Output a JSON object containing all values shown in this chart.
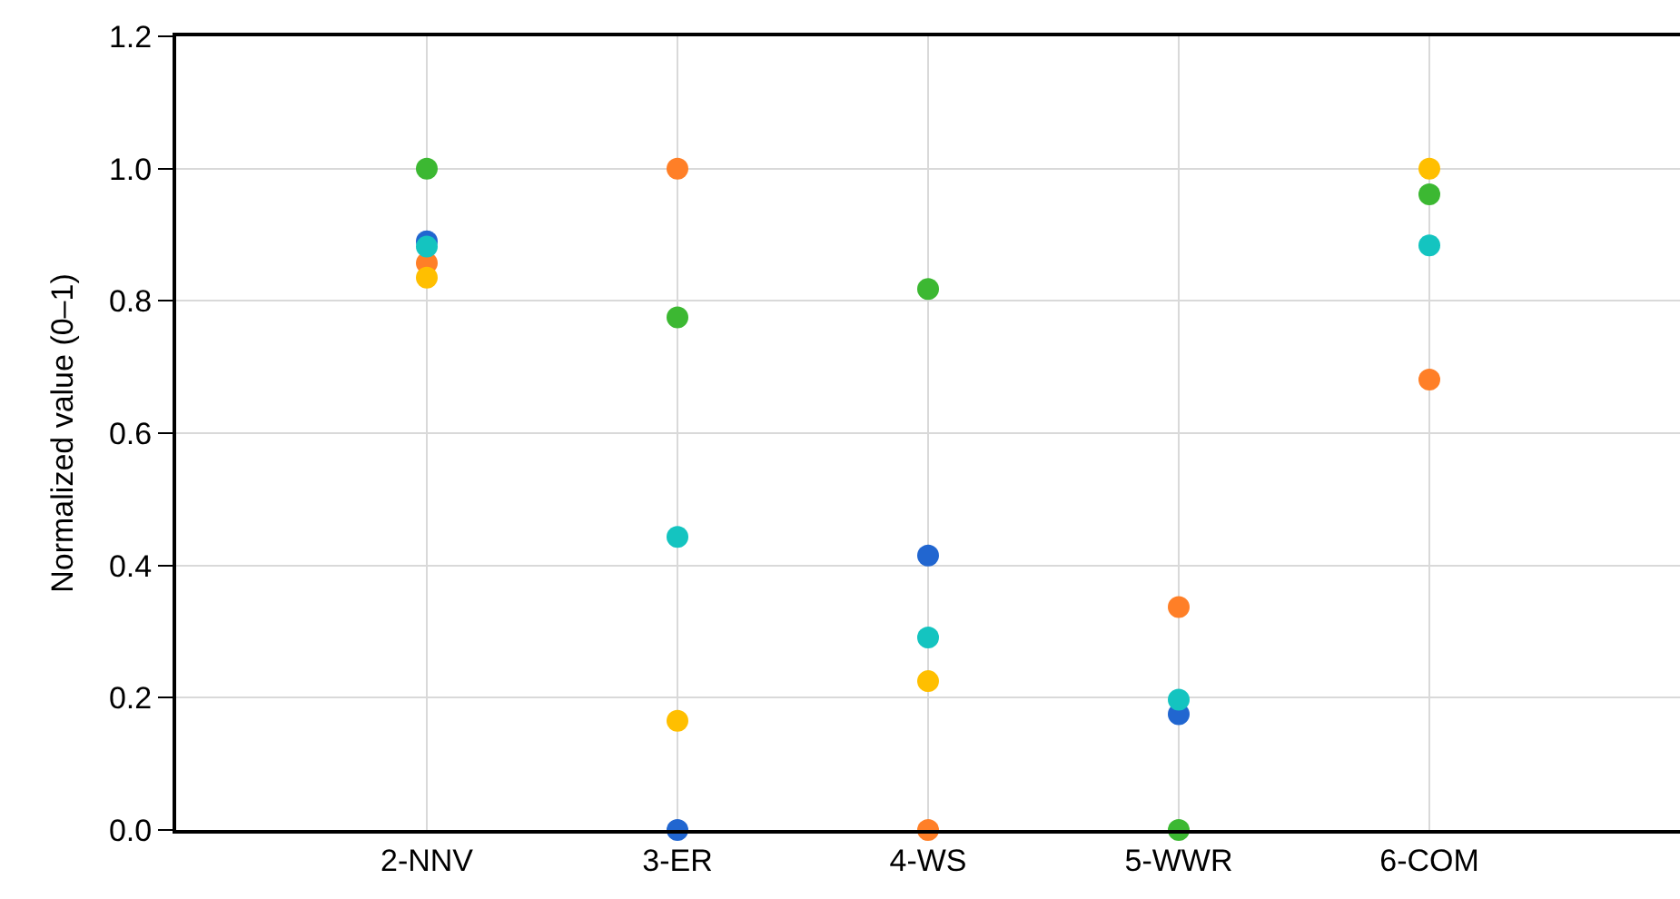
{
  "chart_data": {
    "type": "scatter",
    "ylabel": "Normalized value (0–1)",
    "categories": [
      "2-NNV",
      "3-ER",
      "4-WS",
      "5-WWR",
      "6-COM"
    ],
    "series": [
      {
        "color": "#2166d0",
        "values": [
          0.89,
          0,
          0.415,
          0.175,
          null
        ]
      },
      {
        "color": "#ff7f27",
        "values": [
          0.857,
          1.0,
          0,
          0.337,
          0.681
        ]
      },
      {
        "color": "#ffbf00",
        "values": [
          0.835,
          0.165,
          0.225,
          null,
          1.0
        ]
      },
      {
        "color": "#3cb832",
        "values": [
          1.0,
          0.775,
          0.818,
          0,
          0.961
        ]
      },
      {
        "color": "#14c4c0",
        "values": [
          0.882,
          0.443,
          0.291,
          0.197,
          0.884
        ]
      }
    ],
    "ylim": [
      0,
      1.2
    ],
    "yticks": [
      {
        "value": 0,
        "label": "0.0"
      },
      {
        "value": 0.2,
        "label": "0.2"
      },
      {
        "value": 0.4,
        "label": "0.4"
      },
      {
        "value": 0.6,
        "label": "0.6"
      },
      {
        "value": 0.8,
        "label": "0.8"
      },
      {
        "value": 1.0,
        "label": "1.0"
      },
      {
        "value": 1.2,
        "label": "1.2"
      }
    ],
    "grid": true,
    "legend": false,
    "marker": "circle"
  }
}
